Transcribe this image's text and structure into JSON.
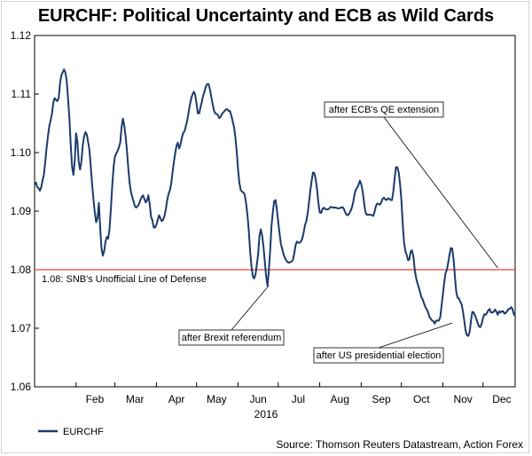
{
  "chart_data": {
    "type": "line",
    "title": "EURCHF: Political Uncertainty and ECB as Wild Cards",
    "xlabel": "2016",
    "ylabel": "",
    "ylim": [
      1.06,
      1.12
    ],
    "y_ticks": [
      "1.12",
      "1.11",
      "1.10",
      "1.09",
      "1.08",
      "1.07",
      "1.06"
    ],
    "x_ticks": [
      "Feb",
      "Mar",
      "Apr",
      "May",
      "Jun",
      "Jul",
      "Aug",
      "Sep",
      "Oct",
      "Nov",
      "Dec"
    ],
    "grid": false,
    "legend": "bottom-left",
    "series": [
      {
        "name": "EURCHF",
        "color": "#1b3a6b",
        "x_unit": "day of 2016",
        "x": [
          1,
          2,
          3,
          4,
          5,
          6,
          7,
          8,
          9,
          10,
          11,
          12,
          13,
          14,
          15,
          16,
          17,
          18,
          19,
          20,
          21,
          22,
          23,
          24,
          25,
          26,
          27,
          28,
          29,
          30,
          31,
          32,
          33,
          34,
          35,
          36,
          37,
          38,
          39,
          40,
          41,
          42,
          43,
          44,
          45,
          46,
          47,
          48,
          49,
          50,
          51,
          52,
          53,
          54,
          55,
          56,
          57,
          58,
          59,
          60,
          61,
          62,
          63,
          64,
          65,
          66,
          67,
          68,
          69,
          70,
          71,
          72,
          73,
          74,
          75,
          76,
          77,
          78,
          79,
          80,
          81,
          82,
          83,
          84,
          85,
          86,
          87,
          88,
          89,
          90,
          91,
          92,
          93,
          94,
          95,
          96,
          97,
          98,
          99,
          100,
          101,
          102,
          103,
          104,
          105,
          106,
          107,
          108,
          109,
          110,
          111,
          112,
          113,
          114,
          115,
          116,
          117,
          118,
          119,
          120,
          121,
          122,
          123,
          124,
          125,
          126,
          127,
          128,
          129,
          130,
          131,
          132,
          133,
          134,
          135,
          136,
          137,
          138,
          139,
          140,
          141,
          142,
          143,
          144,
          145,
          146,
          147,
          148,
          149,
          150,
          151,
          152,
          153,
          154,
          155,
          156,
          157,
          158,
          159,
          160,
          161,
          162,
          163,
          164,
          165,
          166,
          167,
          168,
          169,
          170,
          171,
          172,
          173,
          174,
          175,
          176,
          177,
          178,
          179,
          180,
          181,
          182,
          183,
          184,
          185,
          186,
          187,
          188,
          189,
          190,
          191,
          192,
          193,
          194,
          195,
          196,
          197,
          198,
          199,
          200,
          201,
          202,
          203,
          204,
          205,
          206,
          207,
          208,
          209,
          210,
          211,
          212,
          213,
          214,
          215,
          216,
          217,
          218,
          219,
          220,
          221,
          222,
          223,
          224,
          225,
          226,
          227,
          228,
          229,
          230,
          231,
          232,
          233,
          234,
          235,
          236,
          237,
          238,
          239,
          240,
          241,
          242,
          243,
          244,
          245,
          246,
          247,
          248,
          249,
          250,
          251,
          252,
          253,
          254,
          255,
          256,
          257,
          258,
          259,
          260,
          261,
          262,
          263,
          264,
          265,
          266,
          267,
          268,
          269,
          270,
          271,
          272,
          273,
          274,
          275,
          276,
          277,
          278,
          279,
          280,
          281,
          282,
          283,
          284,
          285,
          286,
          287,
          288,
          289,
          290,
          291,
          292,
          293,
          294,
          295,
          296,
          297,
          298,
          299,
          300,
          301,
          302,
          303,
          304,
          305,
          306,
          307,
          308,
          309,
          310,
          311,
          312,
          313,
          314,
          315,
          316,
          317,
          318,
          319,
          320,
          321,
          322,
          323,
          324,
          325,
          326,
          327,
          328,
          329,
          330,
          331,
          332,
          333,
          334,
          335,
          336,
          337,
          338,
          339,
          340,
          341,
          342,
          343,
          344,
          345,
          346,
          347,
          348,
          349,
          350,
          351,
          352,
          353,
          354,
          355,
          356,
          357,
          358,
          359,
          360
        ],
        "values": [
          1.0945,
          1.0949,
          1.0941,
          1.0939,
          1.0935,
          1.0941,
          1.0953,
          1.0963,
          1.0985,
          1.1009,
          1.1028,
          1.1045,
          1.1055,
          1.1066,
          1.1085,
          1.1093,
          1.109,
          1.1088,
          1.1093,
          1.1118,
          1.1132,
          1.1137,
          1.1142,
          1.1137,
          1.1123,
          1.1093,
          1.1058,
          1.1012,
          1.0976,
          1.0962,
          1.0986,
          1.1033,
          1.1018,
          1.0984,
          1.0971,
          1.0985,
          1.1013,
          1.1028,
          1.1035,
          1.1031,
          1.1018,
          1.1004,
          1.0975,
          1.0946,
          1.092,
          1.0898,
          1.0881,
          1.0888,
          1.0914,
          1.0871,
          1.0836,
          1.0824,
          1.0832,
          1.0848,
          1.0856,
          1.0853,
          1.0869,
          1.0905,
          1.0944,
          1.0975,
          1.0993,
          1.0998,
          1.1003,
          1.1009,
          1.1017,
          1.1043,
          1.1058,
          1.1046,
          1.1027,
          1.1003,
          1.0973,
          1.0948,
          1.0933,
          1.0924,
          1.0916,
          1.0908,
          1.0906,
          1.0909,
          1.0912,
          1.0919,
          1.0924,
          1.0927,
          1.0921,
          1.0915,
          1.0918,
          1.0927,
          1.0913,
          1.0891,
          1.0884,
          1.0872,
          1.0872,
          1.0877,
          1.0885,
          1.0893,
          1.0888,
          1.0883,
          1.0885,
          1.0891,
          1.0903,
          1.0918,
          1.0929,
          1.0935,
          1.0946,
          1.0965,
          1.0983,
          1.0998,
          1.1011,
          1.1017,
          1.1007,
          1.1014,
          1.1025,
          1.1034,
          1.1036,
          1.1045,
          1.1054,
          1.1068,
          1.1081,
          1.1092,
          1.11,
          1.1104,
          1.1098,
          1.1083,
          1.1067,
          1.1067,
          1.1078,
          1.1087,
          1.1098,
          1.1104,
          1.1113,
          1.1117,
          1.1117,
          1.1108,
          1.1095,
          1.1083,
          1.1072,
          1.1067,
          1.1066,
          1.1064,
          1.1059,
          1.1061,
          1.1066,
          1.1069,
          1.1071,
          1.1074,
          1.1074,
          1.1071,
          1.1071,
          1.1063,
          1.1054,
          1.1043,
          1.1026,
          1.1001,
          1.0971,
          1.0948,
          1.0936,
          1.0933,
          1.0932,
          1.0928,
          1.0914,
          1.0893,
          1.0867,
          1.0831,
          1.0806,
          1.0789,
          1.0785,
          1.0791,
          1.0808,
          1.0826,
          1.0857,
          1.0869,
          1.0858,
          1.0839,
          1.0813,
          1.0788,
          1.0773,
          1.0798,
          1.0833,
          1.0875,
          1.0898,
          1.0917,
          1.0919,
          1.0902,
          1.0881,
          1.0862,
          1.0844,
          1.0835,
          1.0826,
          1.082,
          1.0816,
          1.0813,
          1.0812,
          1.0813,
          1.0814,
          1.0817,
          1.0828,
          1.0842,
          1.0848,
          1.0846,
          1.0846,
          1.0848,
          1.0853,
          1.0864,
          1.0876,
          1.0883,
          1.0896,
          1.0915,
          1.0935,
          1.0952,
          1.0966,
          1.0965,
          1.0955,
          1.0937,
          1.0914,
          1.0898,
          1.0897,
          1.0903,
          1.0906,
          1.0904,
          1.0903,
          1.0903,
          1.0904,
          1.0907,
          1.0907,
          1.0906,
          1.0906,
          1.0906,
          1.0905,
          1.0905,
          1.0905,
          1.0906,
          1.0907,
          1.0904,
          1.0898,
          1.0894,
          1.0893,
          1.0896,
          1.09,
          1.0906,
          1.0915,
          1.0928,
          1.0937,
          1.094,
          1.0945,
          1.0952,
          1.0946,
          1.0935,
          1.0917,
          1.09,
          1.0894,
          1.0894,
          1.0894,
          1.0894,
          1.0893,
          1.0892,
          1.0899,
          1.0909,
          1.0913,
          1.0912,
          1.0911,
          1.0915,
          1.0921,
          1.0923,
          1.092,
          1.0919,
          1.0922,
          1.0921,
          1.0919,
          1.0919,
          1.0934,
          1.0956,
          1.0975,
          1.0975,
          1.0966,
          1.0946,
          1.0919,
          1.0879,
          1.0846,
          1.0832,
          1.0825,
          1.0816,
          1.0818,
          1.0831,
          1.0833,
          1.0822,
          1.0799,
          1.0786,
          1.0777,
          1.077,
          1.0761,
          1.0753,
          1.0749,
          1.0742,
          1.0736,
          1.0732,
          1.0727,
          1.0719,
          1.0716,
          1.0713,
          1.0712,
          1.0708,
          1.0713,
          1.0713,
          1.0713,
          1.0719,
          1.0738,
          1.0758,
          1.0778,
          1.0794,
          1.08,
          1.0812,
          1.0826,
          1.0837,
          1.0836,
          1.0817,
          1.0788,
          1.0762,
          1.0752,
          1.0751,
          1.0745,
          1.0741,
          1.0729,
          1.0713,
          1.0696,
          1.0688,
          1.0687,
          1.0694,
          1.0713,
          1.0728,
          1.0727,
          1.0722,
          1.0716,
          1.0709,
          1.0703,
          1.0702,
          1.0708,
          1.0718,
          1.0724,
          1.0723,
          1.0726,
          1.0731,
          1.0733,
          1.0727,
          1.0727,
          1.0728,
          1.0732,
          1.0728,
          1.0723,
          1.0729,
          1.0727,
          1.0729,
          1.0729,
          1.0725,
          1.0726,
          1.0729,
          1.0733,
          1.0733,
          1.0736,
          1.0733,
          1.0724,
          1.0721
        ]
      }
    ],
    "reference_line": {
      "value": 1.08,
      "color": "#e8403a",
      "label": "1.08: SNB's Unofficial Line of Defense"
    },
    "annotations": [
      {
        "text": "after ECB's QE extension",
        "target_x": 347,
        "target_y": 1.0803
      },
      {
        "text": "after Brexit referendum",
        "target_x": 176,
        "target_y": 1.0773
      },
      {
        "text": "after US presidential election",
        "target_x": 313,
        "target_y": 1.0709
      }
    ],
    "source": "Source: Thomson Reuters Datastream, Action Forex"
  }
}
